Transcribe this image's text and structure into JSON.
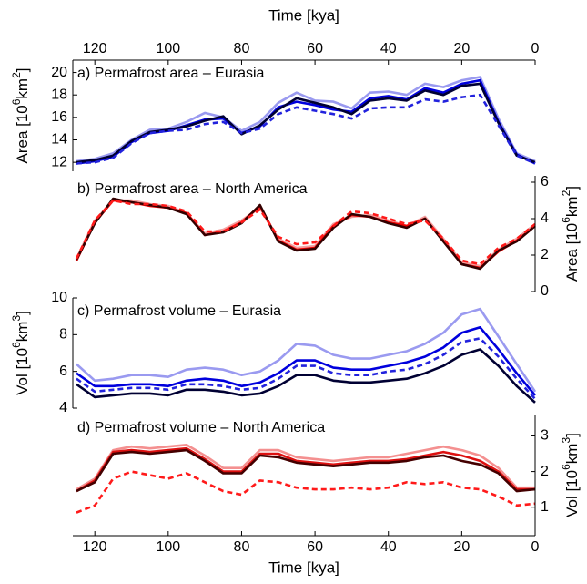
{
  "chart_data": [
    {
      "type": "line",
      "title": "a) Permafrost area – Eurasia",
      "xlabel": "Time [kya]",
      "xaxis_position": "top",
      "ylabel": [
        "Area [10",
        "6",
        "km",
        "2",
        "]"
      ],
      "yaxis_position": "left",
      "x": [
        125,
        120,
        115,
        110,
        105,
        100,
        95,
        90,
        85,
        80,
        75,
        70,
        65,
        60,
        55,
        50,
        45,
        40,
        35,
        30,
        25,
        20,
        15,
        10,
        5,
        0
      ],
      "xlim": [
        126,
        0
      ],
      "xticks": [
        120,
        100,
        80,
        60,
        40,
        20,
        0
      ],
      "ylim": [
        11.2,
        21.1
      ],
      "yticks": [
        12,
        14,
        16,
        18,
        20
      ],
      "series": [
        {
          "color": "#9a9af0",
          "dashed": false,
          "values": [
            12.1,
            12.3,
            12.8,
            14.0,
            14.9,
            15.0,
            15.6,
            16.4,
            16.0,
            14.8,
            15.6,
            17.3,
            18.2,
            17.5,
            17.4,
            16.8,
            18.2,
            18.3,
            18.0,
            19.0,
            18.7,
            19.3,
            19.6,
            15.9,
            12.8,
            12.1
          ]
        },
        {
          "color": "#0000dd",
          "dashed": false,
          "values": [
            11.9,
            12.1,
            12.5,
            13.8,
            14.6,
            14.8,
            15.3,
            15.8,
            15.9,
            14.6,
            15.2,
            16.9,
            17.4,
            17.1,
            16.7,
            16.5,
            17.7,
            17.9,
            17.6,
            18.6,
            18.2,
            19.0,
            19.3,
            15.6,
            12.7,
            11.9
          ]
        },
        {
          "color": "#000033",
          "dashed": false,
          "values": [
            12.0,
            12.2,
            12.6,
            13.9,
            14.7,
            14.9,
            15.2,
            15.7,
            16.1,
            14.5,
            15.3,
            16.7,
            17.7,
            17.3,
            16.9,
            16.3,
            17.5,
            17.7,
            17.5,
            18.4,
            18.0,
            18.8,
            19.0,
            15.5,
            12.6,
            12.0
          ]
        },
        {
          "color": "#2222dd",
          "dashed": true,
          "values": [
            11.9,
            12.0,
            12.4,
            13.7,
            14.6,
            14.8,
            14.9,
            15.4,
            15.6,
            14.6,
            15.0,
            16.3,
            16.9,
            16.6,
            16.3,
            15.9,
            16.8,
            16.9,
            16.9,
            17.6,
            17.4,
            17.8,
            18.0,
            15.3,
            12.6,
            11.9
          ]
        }
      ]
    },
    {
      "type": "line",
      "title": "b) Permafrost area – North America",
      "ylabel": [
        "Area [10",
        "6",
        "km",
        "2",
        "]"
      ],
      "yaxis_position": "right",
      "x": [
        125,
        120,
        115,
        110,
        105,
        100,
        95,
        90,
        85,
        80,
        75,
        70,
        65,
        60,
        55,
        50,
        45,
        40,
        35,
        30,
        25,
        20,
        15,
        10,
        5,
        0
      ],
      "xlim": [
        126,
        0
      ],
      "ylim": [
        0,
        6.35
      ],
      "yticks": [
        0,
        2,
        4,
        6
      ],
      "series": [
        {
          "color": "#f4a0a0",
          "dashed": false,
          "values": [
            1.8,
            3.9,
            5.0,
            5.0,
            4.8,
            4.7,
            4.3,
            3.2,
            3.4,
            3.9,
            4.6,
            2.9,
            2.4,
            2.5,
            3.7,
            4.1,
            4.2,
            3.9,
            3.6,
            4.1,
            2.9,
            1.6,
            1.4,
            2.3,
            2.9,
            3.7
          ]
        },
        {
          "color": "#ee0000",
          "dashed": false,
          "values": [
            1.7,
            3.8,
            5.0,
            4.9,
            4.7,
            4.6,
            4.3,
            3.1,
            3.3,
            3.8,
            4.7,
            2.8,
            2.3,
            2.4,
            3.6,
            4.2,
            4.1,
            3.8,
            3.6,
            4.0,
            2.8,
            1.5,
            1.3,
            2.2,
            2.8,
            3.6
          ]
        },
        {
          "color": "#330000",
          "dashed": false,
          "values": [
            1.75,
            3.75,
            5.1,
            4.9,
            4.75,
            4.6,
            4.25,
            3.1,
            3.25,
            3.75,
            4.75,
            2.75,
            2.25,
            2.35,
            3.5,
            4.25,
            4.1,
            3.75,
            3.5,
            4.0,
            2.75,
            1.5,
            1.25,
            2.25,
            2.75,
            3.6
          ]
        },
        {
          "color": "#ff1a1a",
          "dashed": true,
          "values": [
            1.8,
            3.9,
            5.0,
            4.8,
            4.8,
            4.7,
            4.4,
            3.3,
            3.3,
            3.8,
            4.5,
            3.0,
            2.6,
            2.7,
            3.6,
            4.4,
            4.3,
            4.0,
            3.7,
            3.9,
            2.9,
            1.7,
            1.5,
            2.4,
            2.9,
            3.7
          ]
        }
      ]
    },
    {
      "type": "line",
      "title": "c) Permafrost volume – Eurasia",
      "ylabel": [
        "Vol [10",
        "6",
        "km",
        "3",
        "]"
      ],
      "yaxis_position": "left",
      "x": [
        125,
        120,
        115,
        110,
        105,
        100,
        95,
        90,
        85,
        80,
        75,
        70,
        65,
        60,
        55,
        50,
        45,
        40,
        35,
        30,
        25,
        20,
        15,
        10,
        5,
        0
      ],
      "xlim": [
        126,
        0
      ],
      "ylim": [
        4,
        10
      ],
      "yticks": [
        4,
        6,
        8,
        10
      ],
      "series": [
        {
          "color": "#9a9af0",
          "dashed": false,
          "values": [
            6.4,
            5.5,
            5.6,
            5.8,
            5.8,
            5.7,
            6.1,
            6.2,
            6.1,
            5.8,
            6.0,
            6.6,
            7.5,
            7.4,
            6.9,
            6.7,
            6.7,
            6.9,
            7.1,
            7.5,
            8.1,
            9.1,
            9.4,
            7.9,
            6.4,
            4.9
          ]
        },
        {
          "color": "#0000dd",
          "dashed": false,
          "values": [
            5.9,
            5.2,
            5.2,
            5.3,
            5.3,
            5.2,
            5.5,
            5.6,
            5.5,
            5.2,
            5.4,
            5.9,
            6.6,
            6.6,
            6.2,
            6.1,
            6.1,
            6.3,
            6.5,
            6.8,
            7.3,
            8.1,
            8.4,
            7.2,
            5.9,
            4.7
          ]
        },
        {
          "color": "#000033",
          "dashed": false,
          "values": [
            5.3,
            4.6,
            4.7,
            4.8,
            4.8,
            4.7,
            5.0,
            5.0,
            4.9,
            4.7,
            4.8,
            5.2,
            5.8,
            5.8,
            5.5,
            5.4,
            5.4,
            5.5,
            5.6,
            5.9,
            6.3,
            6.9,
            7.2,
            6.3,
            5.2,
            4.3
          ]
        },
        {
          "color": "#2222dd",
          "dashed": true,
          "values": [
            5.6,
            4.9,
            5.0,
            5.1,
            5.1,
            5.0,
            5.3,
            5.3,
            5.2,
            5.0,
            5.1,
            5.6,
            6.3,
            6.3,
            5.9,
            5.8,
            5.8,
            6.0,
            6.1,
            6.4,
            6.9,
            7.6,
            7.8,
            6.8,
            5.6,
            4.5
          ]
        }
      ]
    },
    {
      "type": "line",
      "title": "d) Permafrost volume – North America",
      "xlabel": "Time [kya]",
      "xaxis_position": "bottom",
      "ylabel": [
        "Vol [10",
        "6",
        "km",
        "3",
        "]"
      ],
      "yaxis_position": "right",
      "x": [
        125,
        120,
        115,
        110,
        105,
        100,
        95,
        90,
        85,
        80,
        75,
        70,
        65,
        60,
        55,
        50,
        45,
        40,
        35,
        30,
        25,
        20,
        15,
        10,
        5,
        0
      ],
      "xlim": [
        126,
        0
      ],
      "xticks": [
        120,
        100,
        80,
        60,
        40,
        20,
        0
      ],
      "ylim": [
        0.2,
        3.6
      ],
      "yticks": [
        1,
        2,
        3
      ],
      "series": [
        {
          "color": "#f49090",
          "dashed": false,
          "values": [
            1.5,
            1.8,
            2.6,
            2.7,
            2.65,
            2.7,
            2.75,
            2.45,
            2.1,
            2.1,
            2.6,
            2.6,
            2.4,
            2.35,
            2.3,
            2.35,
            2.4,
            2.4,
            2.5,
            2.6,
            2.7,
            2.6,
            2.45,
            2.1,
            1.55,
            1.55
          ]
        },
        {
          "color": "#dd1111",
          "dashed": false,
          "values": [
            1.45,
            1.75,
            2.55,
            2.6,
            2.55,
            2.6,
            2.65,
            2.35,
            2.0,
            2.0,
            2.5,
            2.5,
            2.3,
            2.25,
            2.2,
            2.25,
            2.3,
            2.3,
            2.35,
            2.45,
            2.55,
            2.45,
            2.3,
            2.0,
            1.5,
            1.5
          ]
        },
        {
          "color": "#440000",
          "dashed": false,
          "values": [
            1.45,
            1.7,
            2.5,
            2.55,
            2.5,
            2.55,
            2.6,
            2.3,
            1.95,
            1.95,
            2.45,
            2.4,
            2.25,
            2.2,
            2.15,
            2.2,
            2.25,
            2.25,
            2.3,
            2.4,
            2.45,
            2.3,
            2.2,
            1.95,
            1.45,
            1.5
          ]
        },
        {
          "color": "#ff1a1a",
          "dashed": true,
          "values": [
            0.85,
            1.05,
            1.8,
            2.0,
            1.9,
            1.8,
            1.95,
            1.7,
            1.45,
            1.35,
            1.75,
            1.7,
            1.55,
            1.5,
            1.5,
            1.55,
            1.5,
            1.55,
            1.7,
            1.65,
            1.7,
            1.55,
            1.5,
            1.3,
            1.05,
            1.1
          ]
        }
      ]
    }
  ]
}
